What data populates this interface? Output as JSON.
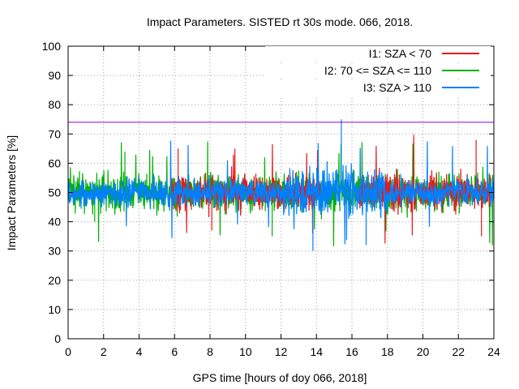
{
  "chart_data": {
    "type": "line",
    "title": "Impact Parameters. SISTED rt 30s mode. 066, 2018.",
    "xlabel": "GPS time [hours of doy 066, 2018]",
    "ylabel": "Impact Parameters [%]",
    "xlim": [
      0,
      24
    ],
    "ylim": [
      0,
      100
    ],
    "xticks": [
      0,
      2,
      4,
      6,
      8,
      10,
      12,
      14,
      16,
      18,
      20,
      22,
      24
    ],
    "yticks": [
      0,
      10,
      20,
      30,
      40,
      50,
      60,
      70,
      80,
      90,
      100
    ],
    "grid": true,
    "legend_position": "top-right",
    "series": [
      {
        "name": "I1: SZA < 70",
        "color": "#e41a1c",
        "description": "Noisy signal around 50% from ~5.8h to ~23.5h",
        "active_ranges": [
          [
            5.8,
            14.2
          ],
          [
            16.4,
            23.8
          ]
        ],
        "x": [
          6,
          8,
          10,
          12,
          14,
          16,
          18,
          20,
          22,
          23.5
        ],
        "values": [
          50,
          50,
          50,
          50,
          50,
          50,
          50,
          50,
          50,
          50
        ],
        "typical_range": [
          42,
          58
        ],
        "extremes": [
          {
            "x": 6.2,
            "y": 65
          },
          {
            "x": 8.1,
            "y": 37
          },
          {
            "x": 23.0,
            "y": 68
          },
          {
            "x": 23.3,
            "y": 35
          }
        ]
      },
      {
        "name": "I2: 70 <= SZA <= 110",
        "color": "#00b000",
        "description": "Noisy signal around 50% spanning whole day",
        "active_ranges": [
          [
            0,
            24
          ]
        ],
        "x": [
          0,
          2,
          4,
          6,
          8,
          10,
          12,
          14,
          16,
          18,
          20,
          22,
          24
        ],
        "values": [
          50,
          50,
          50,
          50,
          50,
          50,
          50,
          50,
          50,
          50,
          50,
          50,
          50
        ],
        "typical_range": [
          42,
          58
        ],
        "extremes": [
          {
            "x": 3.2,
            "y": 64
          },
          {
            "x": 1.5,
            "y": 40
          },
          {
            "x": 11.5,
            "y": 35
          }
        ]
      },
      {
        "name": "I3: SZA > 110",
        "color": "#0080ff",
        "description": "Noisy signal around 50% spanning whole day, wider spread 12h-18h",
        "active_ranges": [
          [
            0,
            24
          ]
        ],
        "x": [
          0,
          2,
          4,
          6,
          8,
          10,
          12,
          14,
          16,
          18,
          20,
          22,
          24
        ],
        "values": [
          50,
          50,
          50,
          50,
          50,
          50,
          50,
          50,
          50,
          50,
          50,
          50,
          50
        ],
        "typical_range": [
          44,
          56
        ],
        "extremes": [
          {
            "x": 13.8,
            "y": 30
          },
          {
            "x": 15.4,
            "y": 75
          },
          {
            "x": 16.8,
            "y": 32
          }
        ]
      }
    ],
    "reference_lines": [
      {
        "orientation": "horizontal",
        "y": 74,
        "color": "#9400d3"
      }
    ]
  }
}
